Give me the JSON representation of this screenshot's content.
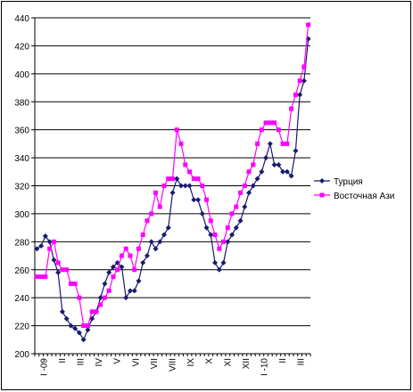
{
  "chart_data": {
    "type": "line",
    "title": "",
    "xlabel": "",
    "ylabel": "",
    "ylim": [
      200,
      440
    ],
    "ytick_step": 20,
    "grid": "horizontal",
    "legend_position": "right",
    "x_tick_labels": [
      "I -09",
      "II",
      "III",
      "IV",
      "V",
      "VI",
      "VII",
      "VIII",
      "IX",
      "X",
      "XI",
      "XII",
      "I -10",
      "II",
      "III"
    ],
    "series": [
      {
        "name": "Турция",
        "color": "#1a1a6e",
        "marker": "diamond",
        "values": [
          275,
          277,
          284,
          280,
          267,
          258,
          230,
          225,
          220,
          218,
          215,
          210,
          217,
          225,
          230,
          240,
          250,
          258,
          262,
          265,
          262,
          240,
          245,
          245,
          252,
          265,
          270,
          280,
          275,
          280,
          285,
          290,
          315,
          325,
          320,
          320,
          320,
          310,
          310,
          300,
          290,
          285,
          265,
          260,
          265,
          280,
          285,
          290,
          295,
          305,
          315,
          320,
          325,
          330,
          340,
          350,
          335,
          335,
          330,
          330,
          327,
          345,
          385,
          395,
          425
        ]
      },
      {
        "name": "Восточная Ази",
        "color": "#ff00ff",
        "marker": "square",
        "values": [
          255,
          255,
          255,
          275,
          280,
          265,
          260,
          260,
          250,
          250,
          240,
          220,
          220,
          230,
          230,
          235,
          240,
          245,
          255,
          260,
          270,
          275,
          270,
          260,
          275,
          285,
          295,
          300,
          315,
          305,
          320,
          325,
          325,
          360,
          350,
          335,
          330,
          325,
          325,
          320,
          310,
          295,
          285,
          275,
          280,
          290,
          300,
          305,
          315,
          320,
          330,
          335,
          350,
          360,
          365,
          365,
          365,
          360,
          350,
          350,
          375,
          385,
          395,
          405,
          435
        ]
      }
    ]
  }
}
